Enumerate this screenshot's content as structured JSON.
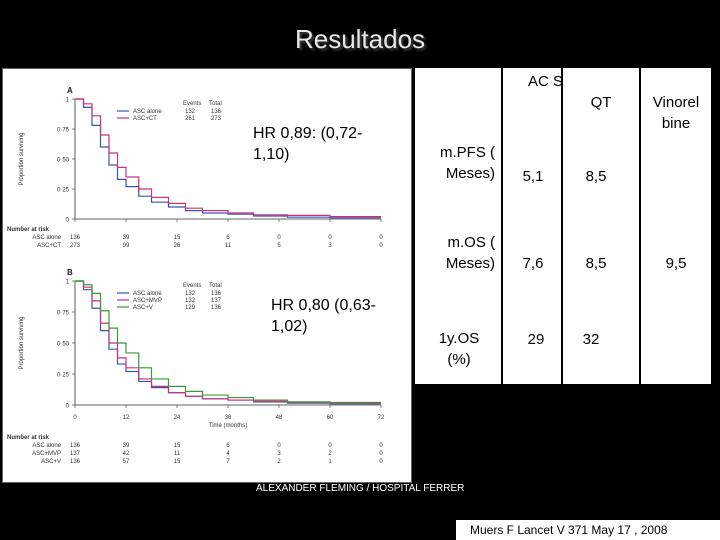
{
  "slide": {
    "title": "Resultados"
  },
  "figure": {
    "panel_a_label": "A",
    "panel_b_label": "B",
    "y_axis_label": "Proportion surviving",
    "x_axis_label": "Time (months)",
    "y_ticks": [
      "1",
      "0·75",
      "0·50",
      "0·25",
      "0"
    ],
    "x_ticks": [
      "0",
      "12",
      "24",
      "36",
      "48",
      "60",
      "72"
    ],
    "legend_header": [
      "Events",
      "Total"
    ],
    "panel_a_legend": [
      {
        "name": "ASC alone",
        "events": "132",
        "total": "136",
        "color": "#3a53b0"
      },
      {
        "name": "ASC+CT",
        "events": "261",
        "total": "273",
        "color": "#c8327a"
      }
    ],
    "panel_b_legend": [
      {
        "name": "ASC alone",
        "events": "132",
        "total": "136",
        "color": "#3a53b0"
      },
      {
        "name": "ASC+MVP",
        "events": "132",
        "total": "137",
        "color": "#c8327a"
      },
      {
        "name": "ASC+V",
        "events": "129",
        "total": "136",
        "color": "#3a9a3a"
      }
    ],
    "risk_title": "Number at risk",
    "panel_a_risk": [
      {
        "name": "ASC alone",
        "values": [
          "136",
          "39",
          "15",
          "6",
          "0",
          "0",
          "0"
        ]
      },
      {
        "name": "ASC+CT",
        "values": [
          "273",
          "99",
          "26",
          "11",
          "5",
          "3",
          "0"
        ]
      }
    ],
    "panel_b_risk": [
      {
        "name": "ASC alone",
        "values": [
          "136",
          "39",
          "15",
          "6",
          "0",
          "0",
          "0"
        ]
      },
      {
        "name": "ASC+MVP",
        "values": [
          "137",
          "42",
          "11",
          "4",
          "3",
          "2",
          "0"
        ]
      },
      {
        "name": "ASC+V",
        "values": [
          "136",
          "57",
          "15",
          "7",
          "2",
          "1",
          "0"
        ]
      }
    ],
    "annotation_a": "HR 0,89: (0,72-1,10)",
    "annotation_b": "HR 0,80 (0,63-1,02)"
  },
  "table": {
    "col_asc": "AC S",
    "col_qt": "QT",
    "col_vinorelbine": "Vinorel bine",
    "rows": [
      {
        "label": "m.PFS ( Meses)",
        "asc": "5,1",
        "qt": "8,5",
        "vin": ""
      },
      {
        "label": "m.OS ( Meses)",
        "asc": "7,6",
        "qt": "8,5",
        "vin": "9,5"
      },
      {
        "label": "1y.OS (%)",
        "asc": "29",
        "qt": "32",
        "vin": ""
      }
    ]
  },
  "footer": "ALEXANDER FLEMING / HOSPITAL FERRER",
  "reference": "Muers F Lancet V 371 May 17 , 2008"
}
